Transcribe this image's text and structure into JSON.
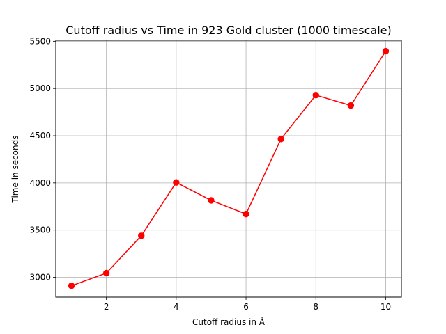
{
  "chart_data": {
    "type": "line",
    "title": "Cutoff radius vs Time in 923 Gold cluster (1000 timescale)",
    "xlabel": "Cutoff radius in Å",
    "ylabel": "Time in seconds",
    "xlim": [
      0.55,
      10.45
    ],
    "ylim": [
      2790,
      5510
    ],
    "xticks": [
      2,
      4,
      6,
      8,
      10
    ],
    "yticks": [
      3000,
      3500,
      4000,
      4500,
      5000,
      5500
    ],
    "grid": true,
    "series": [
      {
        "color": "#ff0000",
        "marker": "circle",
        "x": [
          1,
          2,
          3,
          4,
          5,
          6,
          7,
          8,
          9,
          10
        ],
        "y": [
          2910,
          3045,
          3440,
          4005,
          3815,
          3670,
          4465,
          4930,
          4820,
          5395
        ]
      }
    ]
  }
}
